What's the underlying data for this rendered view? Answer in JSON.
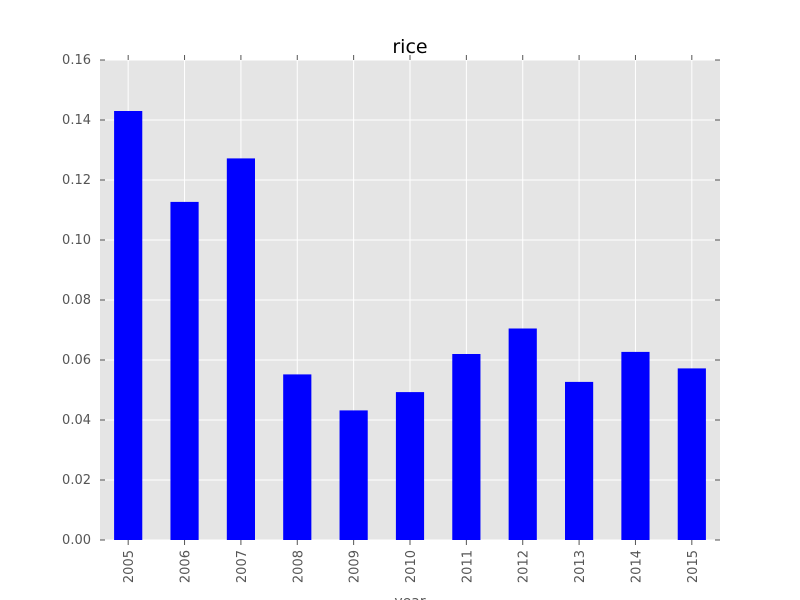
{
  "chart_data": {
    "type": "bar",
    "title": "rice",
    "xlabel": "year",
    "ylabel": "",
    "categories": [
      "2005",
      "2006",
      "2007",
      "2008",
      "2009",
      "2010",
      "2011",
      "2012",
      "2013",
      "2014",
      "2015"
    ],
    "values": [
      0.143,
      0.1127,
      0.1272,
      0.0552,
      0.0432,
      0.0493,
      0.062,
      0.0705,
      0.0527,
      0.0627,
      0.0572
    ],
    "ylim": [
      0,
      0.16
    ],
    "yticks": [
      "0.00",
      "0.02",
      "0.04",
      "0.06",
      "0.08",
      "0.10",
      "0.12",
      "0.14",
      "0.16"
    ],
    "grid": true,
    "legend": false,
    "colors": {
      "bar": "#0000ff",
      "plot_background": "#e5e5e5",
      "grid": "#ffffff"
    }
  }
}
